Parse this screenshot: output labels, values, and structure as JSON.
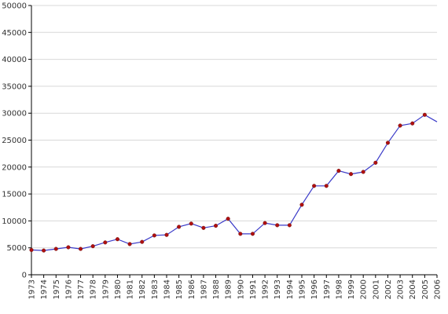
{
  "chart_data": {
    "type": "line",
    "title": "",
    "xlabel": "",
    "ylabel": "",
    "ylim": [
      0,
      50000
    ],
    "yticks": [
      0,
      5000,
      10000,
      15000,
      20000,
      25000,
      30000,
      35000,
      40000,
      45000,
      50000
    ],
    "grid": true,
    "categories": [
      "1973",
      "1974",
      "1975",
      "1976",
      "1977",
      "1978",
      "1979",
      "1980",
      "1981",
      "1982",
      "1983",
      "1984",
      "1985",
      "1986",
      "1987",
      "1988",
      "1989",
      "1990",
      "1991",
      "1992",
      "1993",
      "1994",
      "1995",
      "1996",
      "1997",
      "1998",
      "1999",
      "2000",
      "2001",
      "2002",
      "2003",
      "2004",
      "2005",
      "2006"
    ],
    "series": [
      {
        "values": [
          4600,
          4500,
          4800,
          5100,
          4800,
          5300,
          6000,
          6600,
          5700,
          6100,
          7300,
          7400,
          8900,
          9500,
          8700,
          9100,
          10400,
          7600,
          7600,
          9600,
          9200,
          9200,
          13000,
          16500,
          16500,
          19300,
          18700,
          19100,
          20800,
          24500,
          27700,
          28100,
          29700,
          28400
        ],
        "markers": [
          true,
          true,
          true,
          true,
          true,
          true,
          true,
          true,
          true,
          true,
          true,
          true,
          true,
          true,
          true,
          true,
          true,
          true,
          true,
          true,
          true,
          true,
          true,
          true,
          true,
          true,
          true,
          true,
          true,
          true,
          true,
          true,
          true,
          false
        ]
      }
    ],
    "colors": {
      "line": "#3a3ac8",
      "marker": "#b01010",
      "grid": "#d8d8d8",
      "axis": "#000000"
    }
  }
}
